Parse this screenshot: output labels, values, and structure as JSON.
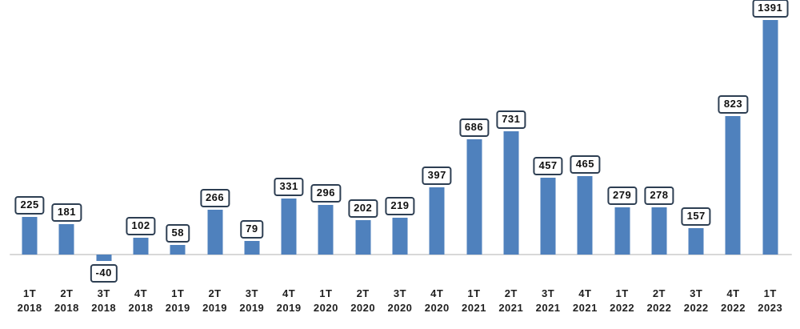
{
  "chart_data": {
    "type": "bar",
    "title": "",
    "xlabel": "",
    "ylabel": "",
    "categories": [
      {
        "quarter": "1T",
        "year": "2018"
      },
      {
        "quarter": "2T",
        "year": "2018"
      },
      {
        "quarter": "3T",
        "year": "2018"
      },
      {
        "quarter": "4T",
        "year": "2018"
      },
      {
        "quarter": "1T",
        "year": "2019"
      },
      {
        "quarter": "2T",
        "year": "2019"
      },
      {
        "quarter": "3T",
        "year": "2019"
      },
      {
        "quarter": "4T",
        "year": "2019"
      },
      {
        "quarter": "1T",
        "year": "2020"
      },
      {
        "quarter": "2T",
        "year": "2020"
      },
      {
        "quarter": "3T",
        "year": "2020"
      },
      {
        "quarter": "4T",
        "year": "2020"
      },
      {
        "quarter": "1T",
        "year": "2021"
      },
      {
        "quarter": "2T",
        "year": "2021"
      },
      {
        "quarter": "3T",
        "year": "2021"
      },
      {
        "quarter": "4T",
        "year": "2021"
      },
      {
        "quarter": "1T",
        "year": "2022"
      },
      {
        "quarter": "2T",
        "year": "2022"
      },
      {
        "quarter": "3T",
        "year": "2022"
      },
      {
        "quarter": "4T",
        "year": "2022"
      },
      {
        "quarter": "1T",
        "year": "2023"
      }
    ],
    "values": [
      225,
      181,
      -40,
      102,
      58,
      266,
      79,
      331,
      296,
      202,
      219,
      397,
      686,
      731,
      457,
      465,
      279,
      278,
      157,
      823,
      1391
    ],
    "data_labels": [
      "225",
      "181",
      "-40",
      "102",
      "58",
      "266",
      "79",
      "331",
      "296",
      "202",
      "219",
      "397",
      "686",
      "731",
      "457",
      "465",
      "279",
      "278",
      "157",
      "823",
      "1391"
    ],
    "data_label_style": "boxed",
    "ylim": [
      -60,
      1400
    ],
    "grid": false,
    "legend": "none",
    "colors": {
      "bar": "#4F81BD",
      "label_box_border": "#2d3e52",
      "label_box_background": "#ffffff",
      "label_text": "#111111",
      "axis_text": "#1f1f1f",
      "axis_line": "#d8d8d8",
      "background": "#ffffff"
    }
  }
}
